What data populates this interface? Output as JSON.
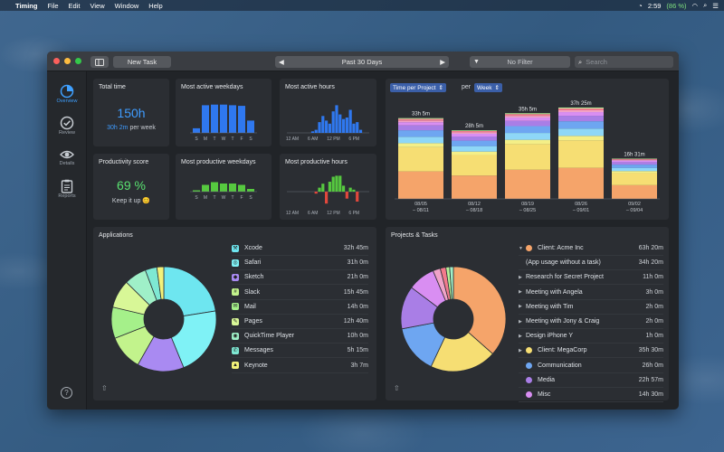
{
  "menubar": {
    "app_name": "Timing",
    "items": [
      "File",
      "Edit",
      "View",
      "Window",
      "Help"
    ],
    "time": "2:59",
    "battery": "(86 %)"
  },
  "toolbar": {
    "new_task": "New Task",
    "period": "Past 30 Days",
    "filter": "No Filter",
    "search_placeholder": "Search"
  },
  "sidebar": {
    "items": [
      {
        "label": "Overview",
        "icon": "pie-icon"
      },
      {
        "label": "Review",
        "icon": "check-icon"
      },
      {
        "label": "Details",
        "icon": "eye-icon"
      },
      {
        "label": "Reports",
        "icon": "report-icon"
      }
    ]
  },
  "total_time": {
    "title": "Total time",
    "value": "150h",
    "per_week": "30h 2m",
    "per_week_suffix": "per week"
  },
  "productivity": {
    "title": "Productivity score",
    "value": "69 %",
    "note": "Keep it up 😊"
  },
  "active_weekdays": {
    "title": "Most active weekdays",
    "days": [
      "S",
      "M",
      "T",
      "W",
      "T",
      "F",
      "S"
    ],
    "values": [
      0.15,
      0.9,
      0.92,
      0.92,
      0.9,
      0.88,
      0.4
    ]
  },
  "active_hours": {
    "title": "Most active hours",
    "ticks": [
      "12 AM",
      "6 AM",
      "12 PM",
      "6 PM"
    ],
    "values": [
      0,
      0,
      0,
      0,
      0,
      0,
      0,
      0.05,
      0.1,
      0.35,
      0.55,
      0.4,
      0.3,
      0.7,
      0.9,
      0.6,
      0.45,
      0.5,
      0.75,
      0.3,
      0.35,
      0.1,
      0,
      0
    ]
  },
  "productive_weekdays": {
    "title": "Most productive weekdays",
    "days": [
      "S",
      "M",
      "T",
      "W",
      "T",
      "F",
      "S"
    ],
    "values": [
      0.05,
      0.25,
      0.35,
      0.3,
      0.3,
      0.25,
      0.1
    ]
  },
  "productive_hours": {
    "title": "Most productive hours",
    "ticks": [
      "12 AM",
      "6 AM",
      "12 PM",
      "6 PM"
    ],
    "values": [
      0,
      0,
      0,
      0,
      0,
      0,
      0,
      0,
      -0.1,
      0.2,
      0.4,
      -0.6,
      0.5,
      0.75,
      0.8,
      0.8,
      0.3,
      -0.35,
      0.2,
      0.1,
      -0.5,
      0,
      0,
      0
    ]
  },
  "time_per_project": {
    "select": "Time per Project",
    "per": "per",
    "unit": "Week",
    "bars": [
      {
        "label": "33h 5m",
        "range": "08/05\n– 08/11",
        "total": 33.08
      },
      {
        "label": "28h 5m",
        "range": "08/12\n– 08/18",
        "total": 28.08
      },
      {
        "label": "35h 5m",
        "range": "08/19\n– 08/25",
        "total": 35.08
      },
      {
        "label": "37h 25m",
        "range": "08/26\n– 09/01",
        "total": 37.42
      },
      {
        "label": "16h 31m",
        "range": "09/02\n– 09/04",
        "total": 16.52
      }
    ],
    "colors": [
      "#f5a46a",
      "#f6de73",
      "#f4ef87",
      "#8ed7f7",
      "#6ea6f1",
      "#a97ee6",
      "#d98ef2",
      "#f0a3c8",
      "#f27a8c",
      "#b6f29a"
    ]
  },
  "applications": {
    "title": "Applications",
    "items": [
      {
        "name": "Xcode",
        "value": "32h 45m",
        "color": "#6ee6f0",
        "icon": "xcode-icon"
      },
      {
        "name": "Safari",
        "value": "31h 0m",
        "color": "#7ff2f6",
        "icon": "safari-icon"
      },
      {
        "name": "Sketch",
        "value": "21h 0m",
        "color": "#a98af2",
        "icon": "sketch-icon"
      },
      {
        "name": "Slack",
        "value": "15h 45m",
        "color": "#c2f38c",
        "icon": "slack-icon"
      },
      {
        "name": "Mail",
        "value": "14h 0m",
        "color": "#a5f08a",
        "icon": "mail-icon"
      },
      {
        "name": "Pages",
        "value": "12h 40m",
        "color": "#d8f797",
        "icon": "pages-icon"
      },
      {
        "name": "QuickTime Player",
        "value": "10h 0m",
        "color": "#9ff0c8",
        "icon": "quicktime-icon"
      },
      {
        "name": "Messages",
        "value": "5h 15m",
        "color": "#7ee8d3",
        "icon": "messages-icon"
      },
      {
        "name": "Keynote",
        "value": "3h 7m",
        "color": "#f2f27a",
        "icon": "keynote-icon"
      }
    ]
  },
  "projects": {
    "title": "Projects & Tasks",
    "items": [
      {
        "name": "Client: Acme Inc",
        "value": "63h 20m",
        "color": "#f5a46a",
        "level": 0,
        "expanded": true
      },
      {
        "name": "(App usage without a task)",
        "value": "34h 20m",
        "level": 1
      },
      {
        "name": "Research for Secret Project",
        "value": "11h 0m",
        "level": 1
      },
      {
        "name": "Meeting with Angela",
        "value": "3h 0m",
        "level": 1
      },
      {
        "name": "Meeting with Tim",
        "value": "2h 0m",
        "level": 1
      },
      {
        "name": "Meeting with Jony & Craig",
        "value": "2h 0m",
        "level": 1
      },
      {
        "name": "Design iPhone Y",
        "value": "1h 0m",
        "level": 1
      },
      {
        "name": "Client: MegaCorp",
        "value": "35h 30m",
        "color": "#f6de73",
        "level": 0
      },
      {
        "name": "Communication",
        "value": "26h 0m",
        "color": "#6ea6f1",
        "level": 0
      },
      {
        "name": "Media",
        "value": "22h 57m",
        "color": "#a97ee6",
        "level": 0
      },
      {
        "name": "Misc",
        "value": "14h 30m",
        "color": "#d98ef2",
        "level": 0
      }
    ],
    "pie": [
      {
        "v": 63.3,
        "c": "#f5a46a"
      },
      {
        "v": 35.5,
        "c": "#f6de73"
      },
      {
        "v": 26,
        "c": "#6ea6f1"
      },
      {
        "v": 23,
        "c": "#a97ee6"
      },
      {
        "v": 14.5,
        "c": "#d98ef2"
      },
      {
        "v": 4,
        "c": "#f0a3c8"
      },
      {
        "v": 3,
        "c": "#f27a8c"
      },
      {
        "v": 2,
        "c": "#b6f29a"
      },
      {
        "v": 2,
        "c": "#9ff0c8"
      }
    ]
  }
}
